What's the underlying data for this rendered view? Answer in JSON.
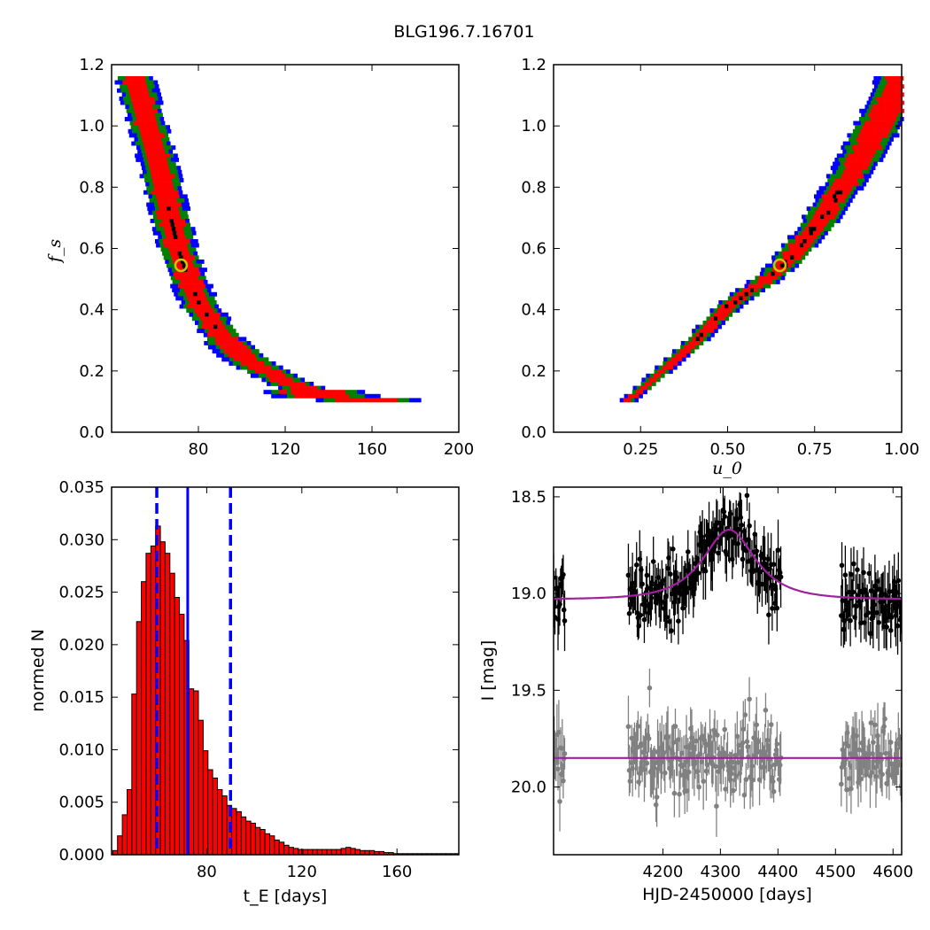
{
  "title": "BLG196.7.16701",
  "chart_data": [
    {
      "type": "heatmap",
      "panel": "fs-vs-tE",
      "xlabel": "",
      "ylabel": "f_s",
      "xlim": [
        40,
        200
      ],
      "ylim": [
        0.0,
        1.2
      ],
      "xticks": [
        "80",
        "120",
        "160",
        "200"
      ],
      "yticks": [
        "0.0",
        "0.2",
        "0.4",
        "0.6",
        "0.8",
        "1.0",
        "1.2"
      ],
      "levels": [
        {
          "name": "outer",
          "color": "#0000ff"
        },
        {
          "name": "middle",
          "color": "#008000"
        },
        {
          "name": "inner",
          "color": "#ff0000"
        },
        {
          "name": "best",
          "color": "#000000"
        }
      ],
      "ridge": [
        [
          50,
          1.16
        ],
        [
          60,
          0.9
        ],
        [
          65,
          0.75
        ],
        [
          70,
          0.6
        ],
        [
          75,
          0.5
        ],
        [
          80,
          0.42
        ],
        [
          90,
          0.32
        ],
        [
          100,
          0.25
        ],
        [
          120,
          0.17
        ],
        [
          140,
          0.12
        ],
        [
          160,
          0.11
        ],
        [
          185,
          0.105
        ]
      ],
      "marker": {
        "x": 72,
        "y": 0.545,
        "color": "#c8c800"
      }
    },
    {
      "type": "heatmap",
      "panel": "fs-vs-u0",
      "xlabel": "u_0",
      "ylabel": "",
      "xlim": [
        0.0,
        1.0
      ],
      "ylim": [
        0.0,
        1.2
      ],
      "xticks": [
        "0.25",
        "0.50",
        "0.75",
        "1.00"
      ],
      "yticks": [
        "0.0",
        "0.2",
        "0.4",
        "0.6",
        "0.8",
        "1.0",
        "1.2"
      ],
      "ridge": [
        [
          0.2,
          0.1
        ],
        [
          0.3,
          0.2
        ],
        [
          0.4,
          0.3
        ],
        [
          0.5,
          0.42
        ],
        [
          0.6,
          0.5
        ],
        [
          0.65,
          0.545
        ],
        [
          0.75,
          0.68
        ],
        [
          0.85,
          0.85
        ],
        [
          0.95,
          1.05
        ],
        [
          1.0,
          1.16
        ]
      ],
      "marker": {
        "x": 0.65,
        "y": 0.545,
        "color": "#c8c800"
      }
    },
    {
      "type": "bar",
      "panel": "tE-histogram",
      "xlabel": "t_E [days]",
      "ylabel": "normed N",
      "xlim": [
        40,
        186
      ],
      "ylim": [
        0.0,
        0.035
      ],
      "xticks": [
        "80",
        "120",
        "160"
      ],
      "yticks": [
        "0.000",
        "0.005",
        "0.010",
        "0.015",
        "0.020",
        "0.025",
        "0.030",
        "0.035"
      ],
      "bin_start": 40.5,
      "bin_width": 2,
      "values": [
        0.0004,
        0.0018,
        0.0038,
        0.0062,
        0.0153,
        0.0222,
        0.026,
        0.0287,
        0.0294,
        0.0313,
        0.0298,
        0.0287,
        0.0268,
        0.0245,
        0.0229,
        0.0204,
        0.0158,
        0.0156,
        0.0128,
        0.0099,
        0.0081,
        0.0073,
        0.0062,
        0.0056,
        0.0047,
        0.0044,
        0.0041,
        0.0036,
        0.0032,
        0.003,
        0.0026,
        0.0024,
        0.002,
        0.0018,
        0.0014,
        0.0012,
        0.0009,
        0.0007,
        0.0006,
        0.0005,
        0.0005,
        0.0005,
        0.0005,
        0.0005,
        0.0005,
        0.0005,
        0.0005,
        0.0005,
        0.0006,
        0.0007,
        0.0006,
        0.0005,
        0.0004,
        0.0004,
        0.0004,
        0.0003,
        0.0003,
        0.0002,
        0.0002,
        0.0001,
        0.0001,
        0.0001,
        0.0001,
        0.0001,
        0.0001,
        0.0001,
        0.0001,
        0.0001,
        0.0001,
        0.0001,
        0.0001,
        0.0001,
        0.0001
      ],
      "bar_color": "#ff0000",
      "median": 72,
      "interval": [
        59,
        90
      ],
      "line_color": "#0000ff"
    },
    {
      "type": "scatter",
      "panel": "light-curve",
      "xlabel": "HJD-2450000 [days]",
      "ylabel": "I [mag]",
      "xlim": [
        4010,
        4615
      ],
      "ylim": [
        20.35,
        18.45
      ],
      "xticks": [
        "4200",
        "4300",
        "4400",
        "4500",
        "4600"
      ],
      "yticks": [
        "18.5",
        "19.0",
        "19.5",
        "20.0"
      ],
      "observed": {
        "color": "#000000",
        "baseline": 19.03,
        "model_peak": 18.67,
        "peak_time": 4315,
        "tE": 72,
        "u0": 0.65,
        "fs": 0.545
      },
      "residuals": {
        "color": "#808080",
        "baseline": 19.85
      },
      "model_color": "#a020a0",
      "seasons": [
        [
          4010,
          4030
        ],
        [
          4140,
          4405
        ],
        [
          4510,
          4615
        ]
      ]
    }
  ]
}
